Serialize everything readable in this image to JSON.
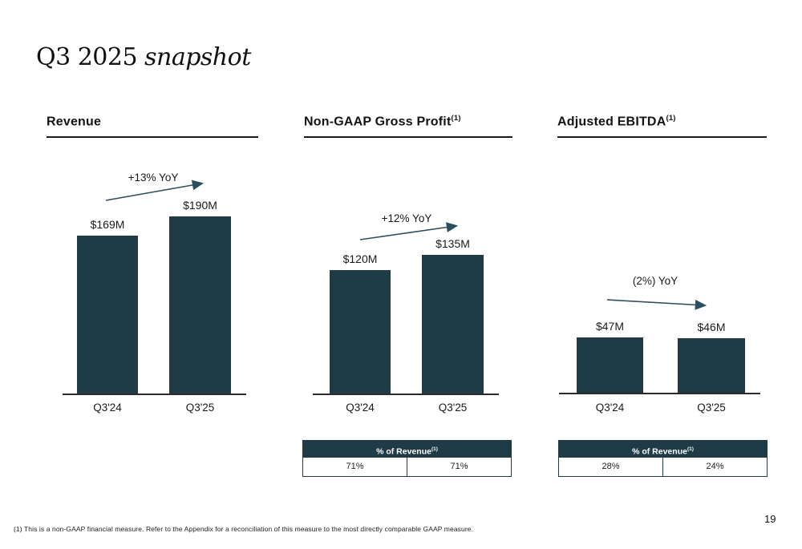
{
  "title": {
    "prefix": "Q3 2025 ",
    "italic": "snapshot"
  },
  "page_number": "19",
  "footnote": "(1) This is a non-GAAP financial measure.  Refer to the Appendix for a reconciliation of this measure to the most directly comparable GAAP measure.",
  "colors": {
    "bar_fill": "#1f3b46",
    "arrow": "#2c4f5e",
    "table_header_bg": "#1f3b46",
    "table_header_text": "#ffffff",
    "text_dark": "#1a1a1a"
  },
  "chart_data": [
    {
      "type": "bar",
      "title": "Revenue",
      "categories": [
        "Q3'24",
        "Q3'25"
      ],
      "values": [
        169,
        190
      ],
      "value_labels": [
        "$169M",
        "$190M"
      ],
      "yoy_label": "+13% YoY",
      "unit": "USD millions"
    },
    {
      "type": "bar",
      "title": "Non-GAAP Gross Profit",
      "title_superscript": "(1)",
      "categories": [
        "Q3'24",
        "Q3'25"
      ],
      "values": [
        120,
        135
      ],
      "value_labels": [
        "$120M",
        "$135M"
      ],
      "yoy_label": "+12% YoY",
      "unit": "USD millions",
      "table": {
        "header": "% of Revenue",
        "header_superscript": "(1)",
        "cells": [
          "71%",
          "71%"
        ]
      }
    },
    {
      "type": "bar",
      "title": "Adjusted EBITDA",
      "title_superscript": "(1)",
      "categories": [
        "Q3'24",
        "Q3'25"
      ],
      "values": [
        47,
        46
      ],
      "value_labels": [
        "$47M",
        "$46M"
      ],
      "yoy_label": "(2%) YoY",
      "unit": "USD millions",
      "table": {
        "header": "% of Revenue",
        "header_superscript": "(1)",
        "cells": [
          "28%",
          "24%"
        ]
      }
    }
  ]
}
